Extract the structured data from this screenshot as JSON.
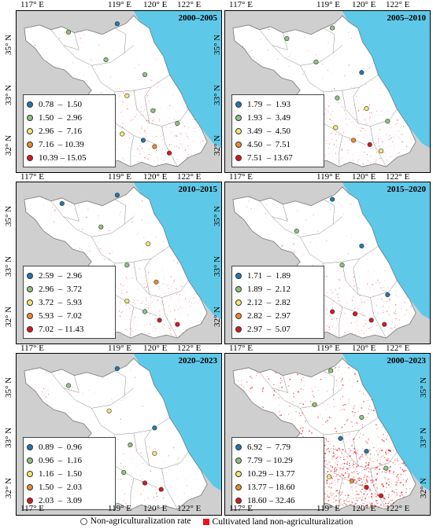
{
  "colors": {
    "sea": "#5ec8e8",
    "land_outside": "#cfcfcf",
    "province": "#ffffff",
    "boundary": "#8a8a8a",
    "cultivated": "#e8141c",
    "class": [
      "#1f78b4",
      "#8cc47e",
      "#f2e86d",
      "#ee8a2e",
      "#d7191c"
    ]
  },
  "x_ticks": [
    "117° E",
    "119° E",
    "120° E",
    "122° E"
  ],
  "y_ticks": [
    "35° N",
    "33° N",
    "32° N"
  ],
  "panels": [
    {
      "title": "2000–2005",
      "legend": [
        "0.78  –  1.50",
        "1.50  –  2.96",
        "2.96  –  7.16",
        "7.16  – 10.39",
        "10.39 – 15.05"
      ],
      "density": 1,
      "points": [
        {
          "lon": 119.4,
          "lat": 35.05,
          "class": 0
        },
        {
          "lon": 117.9,
          "lat": 34.85,
          "class": 1
        },
        {
          "lon": 119.05,
          "lat": 34.2,
          "class": 1
        },
        {
          "lon": 120.25,
          "lat": 33.85,
          "class": 1
        },
        {
          "lon": 119.7,
          "lat": 33.35,
          "class": 2
        },
        {
          "lon": 120.5,
          "lat": 33.0,
          "class": 1
        },
        {
          "lon": 119.15,
          "lat": 32.5,
          "class": 2
        },
        {
          "lon": 119.55,
          "lat": 32.45,
          "class": 2
        },
        {
          "lon": 120.2,
          "lat": 32.3,
          "class": 0
        },
        {
          "lon": 120.55,
          "lat": 32.15,
          "class": 3
        },
        {
          "lon": 121.25,
          "lat": 32.7,
          "class": 1
        },
        {
          "lon": 121.0,
          "lat": 32.0,
          "class": 4
        }
      ]
    },
    {
      "title": "2005–2010",
      "legend": [
        "1.79  –  1.93",
        "1.93  –  3.49",
        "3.49  –  4.50",
        "4.50  –  7.51",
        "7.51  – 13.67"
      ],
      "density": 1,
      "points": [
        {
          "lon": 119.6,
          "lat": 34.95,
          "class": 1
        },
        {
          "lon": 118.2,
          "lat": 34.7,
          "class": 1
        },
        {
          "lon": 119.1,
          "lat": 34.15,
          "class": 1
        },
        {
          "lon": 120.5,
          "lat": 33.9,
          "class": 0
        },
        {
          "lon": 119.75,
          "lat": 33.3,
          "class": 1
        },
        {
          "lon": 120.65,
          "lat": 33.05,
          "class": 2
        },
        {
          "lon": 119.25,
          "lat": 32.55,
          "class": 3
        },
        {
          "lon": 119.7,
          "lat": 32.6,
          "class": 2
        },
        {
          "lon": 120.25,
          "lat": 32.3,
          "class": 3
        },
        {
          "lon": 120.75,
          "lat": 32.2,
          "class": 4
        },
        {
          "lon": 121.3,
          "lat": 32.75,
          "class": 1
        },
        {
          "lon": 121.1,
          "lat": 32.05,
          "class": 2
        }
      ]
    },
    {
      "title": "2010–2015",
      "legend": [
        "2.59  –  2.96",
        "2.96  –  3.72",
        "3.72  –  5.93",
        "5.93  –  7.02",
        "7.02  – 11.43"
      ],
      "density": 1,
      "points": [
        {
          "lon": 117.7,
          "lat": 34.85,
          "class": 0
        },
        {
          "lon": 119.4,
          "lat": 35.05,
          "class": 0
        },
        {
          "lon": 118.9,
          "lat": 34.3,
          "class": 1
        },
        {
          "lon": 120.35,
          "lat": 33.9,
          "class": 2
        },
        {
          "lon": 119.7,
          "lat": 33.4,
          "class": 1
        },
        {
          "lon": 120.6,
          "lat": 33.0,
          "class": 3
        },
        {
          "lon": 119.2,
          "lat": 32.5,
          "class": 2
        },
        {
          "lon": 119.7,
          "lat": 32.55,
          "class": 2
        },
        {
          "lon": 120.25,
          "lat": 32.3,
          "class": 1
        },
        {
          "lon": 120.7,
          "lat": 32.1,
          "class": 4
        },
        {
          "lon": 121.25,
          "lat": 32.0,
          "class": 4
        }
      ]
    },
    {
      "title": "2015–2020",
      "legend": [
        "1.71  –  1.89",
        "1.89  –  2.12",
        "2.12  –  2.82",
        "2.82  –  2.97",
        "2.97  –  5.07"
      ],
      "density": 1,
      "points": [
        {
          "lon": 119.6,
          "lat": 34.95,
          "class": 0
        },
        {
          "lon": 118.5,
          "lat": 34.2,
          "class": 1
        },
        {
          "lon": 120.5,
          "lat": 33.85,
          "class": 0
        },
        {
          "lon": 119.9,
          "lat": 33.4,
          "class": 1
        },
        {
          "lon": 121.3,
          "lat": 32.7,
          "class": 0
        },
        {
          "lon": 118.9,
          "lat": 32.4,
          "class": 4
        },
        {
          "lon": 119.6,
          "lat": 32.3,
          "class": 4
        },
        {
          "lon": 120.3,
          "lat": 32.25,
          "class": 4
        },
        {
          "lon": 120.8,
          "lat": 32.1,
          "class": 4
        },
        {
          "lon": 121.2,
          "lat": 32.0,
          "class": 4
        }
      ]
    },
    {
      "title": "2020–2023",
      "legend": [
        "0.89  –  0.96",
        "0.96  –  1.16",
        "1.16  –  1.50",
        "1.50  –  2.03",
        "2.03  –  3.09"
      ],
      "density": 0,
      "points": [
        {
          "lon": 119.4,
          "lat": 35.0,
          "class": 0
        },
        {
          "lon": 117.9,
          "lat": 34.6,
          "class": 1
        },
        {
          "lon": 119.15,
          "lat": 34.0,
          "class": 2
        },
        {
          "lon": 120.55,
          "lat": 33.6,
          "class": 0
        },
        {
          "lon": 119.8,
          "lat": 33.2,
          "class": 1
        },
        {
          "lon": 120.55,
          "lat": 33.0,
          "class": 2
        },
        {
          "lon": 119.05,
          "lat": 32.5,
          "class": 3
        },
        {
          "lon": 119.6,
          "lat": 32.55,
          "class": 1
        },
        {
          "lon": 120.25,
          "lat": 32.3,
          "class": 4
        },
        {
          "lon": 120.75,
          "lat": 32.15,
          "class": 4
        }
      ]
    },
    {
      "title": "2000–2023",
      "legend": [
        "6.92  –  7.79",
        "7.79  – 10.29",
        "10.29 – 13.77",
        "13.77 – 18.60",
        "18.60 – 32.46"
      ],
      "density": 3,
      "points": [
        {
          "lon": 119.55,
          "lat": 34.95,
          "class": 1
        },
        {
          "lon": 119.05,
          "lat": 34.15,
          "class": 1
        },
        {
          "lon": 120.5,
          "lat": 33.85,
          "class": 1
        },
        {
          "lon": 119.85,
          "lat": 33.35,
          "class": 0
        },
        {
          "lon": 120.65,
          "lat": 33.05,
          "class": 0
        },
        {
          "lon": 119.5,
          "lat": 32.45,
          "class": 2
        },
        {
          "lon": 119.1,
          "lat": 32.45,
          "class": 3
        },
        {
          "lon": 120.2,
          "lat": 32.35,
          "class": 3
        },
        {
          "lon": 120.65,
          "lat": 32.2,
          "class": 4
        },
        {
          "lon": 121.25,
          "lat": 32.65,
          "class": 1
        },
        {
          "lon": 121.1,
          "lat": 32.0,
          "class": 4
        }
      ]
    }
  ],
  "bottom_legend": {
    "rate_label": "Non-agriculturalization rate",
    "cultivated_label": "Cultivated land non-agriculturalization"
  }
}
